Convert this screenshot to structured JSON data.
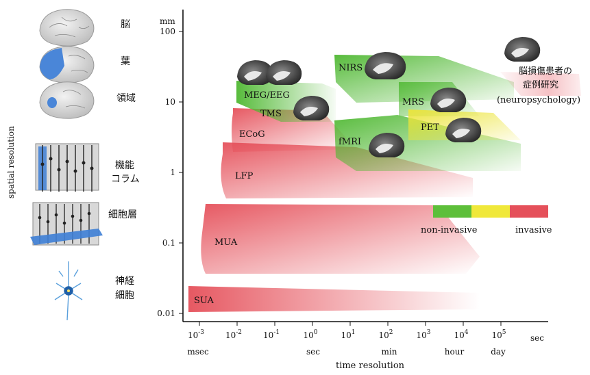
{
  "axes": {
    "y_unit": "mm",
    "y_ticks": [
      "100",
      "10",
      "1",
      "0.1",
      "0.01"
    ],
    "y_axis_label": "spatial resolution",
    "x_ticks": [
      {
        "base": "10",
        "exp": "-3"
      },
      {
        "base": "10",
        "exp": "-2"
      },
      {
        "base": "10",
        "exp": "-1"
      },
      {
        "base": "10",
        "exp": "0"
      },
      {
        "base": "10",
        "exp": "1"
      },
      {
        "base": "10",
        "exp": "2"
      },
      {
        "base": "10",
        "exp": "3"
      },
      {
        "base": "10",
        "exp": "4"
      },
      {
        "base": "10",
        "exp": "5"
      }
    ],
    "x_unit_labels": [
      "msec",
      "sec",
      "min",
      "hour",
      "day",
      "sec"
    ],
    "x_axis_label": "time resolution"
  },
  "left_labels": {
    "brain": "脳",
    "lobe": "葉",
    "area": "領域",
    "column_1": "機能",
    "column_2": "コラム",
    "layer": "細胞層",
    "neuron_1": "神経",
    "neuron_2": "細胞"
  },
  "regions": {
    "sua": "SUA",
    "mua": "MUA",
    "lfp": "LFP",
    "ecog": "ECoG",
    "meg": "MEG/EEG",
    "tms": "TMS",
    "nirs": "NIRS",
    "fmri": "fMRI",
    "mrs": "MRS",
    "pet": "PET",
    "lesion_1": "脳損傷患者の",
    "lesion_2": "症例研究",
    "lesion_3": "(neuropsychology)"
  },
  "legend": {
    "non_invasive": "non-invasive",
    "invasive": "invasive",
    "colors": {
      "green": "#5dbf3a",
      "yellow": "#f0e83a",
      "red": "#e5505a"
    }
  },
  "icons": [
    "brain-icon",
    "brain-lobe-icon",
    "brain-area-icon",
    "cortical-column-icon",
    "cell-layer-icon",
    "neuron-icon",
    "brain-section-icon"
  ]
}
